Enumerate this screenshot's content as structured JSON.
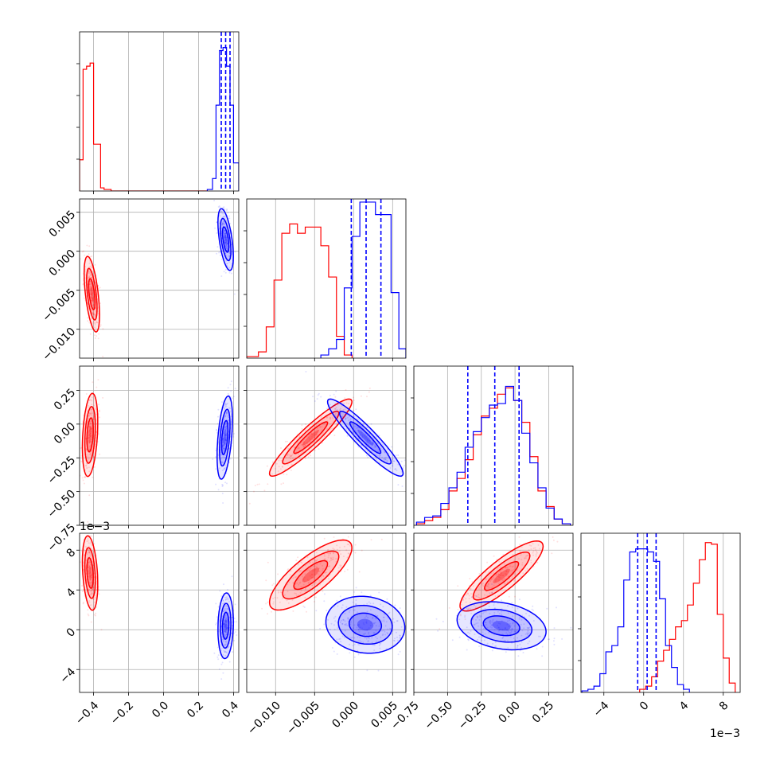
{
  "chart_data": {
    "type": "corner",
    "colors": {
      "series_a": "#ff0000",
      "series_b": "#0000ff"
    },
    "variables": [
      {
        "ticks": [
          -0.4,
          -0.2,
          0.0,
          0.2,
          0.4
        ],
        "tick_labels": [
          "−0.4",
          "−0.2",
          "0.0",
          "0.2",
          "0.4"
        ],
        "range": [
          -0.48,
          0.43
        ],
        "offset_label": ""
      },
      {
        "ticks": [
          -0.01,
          -0.005,
          0.0,
          0.005
        ],
        "tick_labels": [
          "−0.010",
          "−0.005",
          "0.000",
          "0.005"
        ],
        "range": [
          -0.0137,
          0.0067
        ],
        "offset_label": ""
      },
      {
        "ticks": [
          -0.75,
          -0.5,
          -0.25,
          0.0,
          0.25
        ],
        "tick_labels": [
          "−0.75",
          "−0.50",
          "−0.25",
          "0.00",
          "0.25"
        ],
        "range": [
          -0.75,
          0.43
        ],
        "offset_label": ""
      },
      {
        "ticks": [
          -4,
          0,
          4,
          8
        ],
        "tick_labels": [
          "−4",
          "0",
          "4",
          "8"
        ],
        "range": [
          -6.3,
          9.7
        ],
        "offset_label": "1e−3"
      }
    ],
    "quantiles_b": [
      [
        0.33,
        0.355,
        0.38
      ],
      [
        -0.0003,
        0.0016,
        0.0035
      ],
      [
        -0.35,
        -0.15,
        0.03
      ],
      [
        -0.6,
        0.35,
        1.25
      ]
    ],
    "histograms": [
      {
        "a": {
          "edges": [
            -0.48,
            -0.46,
            -0.44,
            -0.42,
            -0.4,
            -0.38,
            -0.36,
            -0.34,
            -0.32,
            -0.3,
            0.25
          ],
          "counts": [
            0.2,
            0.78,
            0.8,
            0.82,
            0.3,
            0.3,
            0.02,
            0.01,
            0.01,
            0
          ]
        },
        "b": {
          "edges": [
            0.25,
            0.28,
            0.3,
            0.32,
            0.34,
            0.36,
            0.38,
            0.4,
            0.43
          ],
          "counts": [
            0.01,
            0.08,
            0.55,
            0.9,
            0.92,
            0.8,
            0.55,
            0.18
          ]
        }
      },
      {
        "a": {
          "edges": [
            -0.0137,
            -0.0122,
            -0.0112,
            -0.0102,
            -0.0092,
            -0.0082,
            -0.0072,
            -0.0062,
            -0.0052,
            -0.0042,
            -0.0032,
            -0.0022,
            -0.0012,
            -0.0002
          ],
          "counts": [
            0.01,
            0.04,
            0.2,
            0.5,
            0.8,
            0.86,
            0.8,
            0.84,
            0.84,
            0.72,
            0.52,
            0.14,
            0.02
          ]
        },
        "b": {
          "edges": [
            -0.0042,
            -0.0032,
            -0.0022,
            -0.0012,
            -0.0002,
            0.0008,
            0.0018,
            0.0028,
            0.0038,
            0.0048,
            0.0058,
            0.0067
          ],
          "counts": [
            0.02,
            0.06,
            0.12,
            0.45,
            0.78,
            1.0,
            1.0,
            0.92,
            0.92,
            0.42,
            0.06
          ]
        }
      },
      {
        "a": {
          "edges": [
            -0.73,
            -0.67,
            -0.61,
            -0.55,
            -0.49,
            -0.43,
            -0.37,
            -0.31,
            -0.25,
            -0.19,
            -0.13,
            -0.07,
            -0.01,
            0.05,
            0.11,
            0.17,
            0.23,
            0.29,
            0.35,
            0.41
          ],
          "counts": [
            0.01,
            0.03,
            0.05,
            0.1,
            0.22,
            0.3,
            0.42,
            0.58,
            0.7,
            0.75,
            0.84,
            0.88,
            0.8,
            0.66,
            0.44,
            0.22,
            0.12,
            0.04,
            0.01
          ]
        },
        "b": {
          "edges": [
            -0.73,
            -0.67,
            -0.61,
            -0.55,
            -0.49,
            -0.43,
            -0.37,
            -0.31,
            -0.25,
            -0.19,
            -0.13,
            -0.07,
            -0.01,
            0.05,
            0.11,
            0.17,
            0.23,
            0.29,
            0.35,
            0.41
          ],
          "counts": [
            0.02,
            0.05,
            0.06,
            0.14,
            0.24,
            0.34,
            0.5,
            0.6,
            0.69,
            0.77,
            0.78,
            0.89,
            0.8,
            0.59,
            0.4,
            0.24,
            0.11,
            0.04,
            0.01
          ]
        }
      },
      {
        "a": {
          "edges": [
            -0.4,
            0.2,
            0.8,
            1.4,
            2.0,
            2.6,
            3.2,
            3.8,
            4.4,
            5.0,
            5.6,
            6.2,
            6.8,
            7.4,
            8.0,
            8.6,
            9.2
          ],
          "counts": [
            0.02,
            0.04,
            0.1,
            0.2,
            0.27,
            0.34,
            0.42,
            0.46,
            0.56,
            0.7,
            0.85,
            0.96,
            0.95,
            0.5,
            0.22,
            0.06
          ]
        },
        "b": {
          "edges": [
            -6.2,
            -5.6,
            -5.0,
            -4.4,
            -3.8,
            -3.2,
            -2.6,
            -2.0,
            -1.4,
            -0.8,
            -0.2,
            0.4,
            1.0,
            1.6,
            2.2,
            2.8,
            3.4,
            4.0,
            4.6
          ],
          "counts": [
            0.01,
            0.02,
            0.04,
            0.12,
            0.26,
            0.3,
            0.42,
            0.72,
            0.9,
            0.92,
            0.92,
            0.9,
            0.84,
            0.6,
            0.3,
            0.16,
            0.05,
            0.02
          ]
        }
      }
    ],
    "contour_pairs": [
      {
        "x": 0,
        "y": 1,
        "a": {
          "mean": [
            -0.41,
            -0.0055
          ],
          "sd": [
            0.02,
            0.0022
          ],
          "rho": -0.55
        },
        "b": {
          "mean": [
            0.355,
            0.0015
          ],
          "sd": [
            0.02,
            0.0018
          ],
          "rho": -0.55
        }
      },
      {
        "x": 0,
        "y": 2,
        "a": {
          "mean": [
            -0.42,
            -0.08
          ],
          "sd": [
            0.02,
            0.14
          ],
          "rho": 0.3
        },
        "b": {
          "mean": [
            0.35,
            -0.1
          ],
          "sd": [
            0.02,
            0.14
          ],
          "rho": 0.45
        }
      },
      {
        "x": 1,
        "y": 2,
        "a": {
          "mean": [
            -0.0055,
            -0.1
          ],
          "sd": [
            0.0024,
            0.13
          ],
          "rho": 0.93
        },
        "b": {
          "mean": [
            0.0015,
            -0.1
          ],
          "sd": [
            0.0022,
            0.13
          ],
          "rho": -0.93
        }
      },
      {
        "x": 0,
        "y": 3,
        "a": {
          "mean": [
            -0.42,
            5.7
          ],
          "sd": [
            0.02,
            1.7
          ],
          "rho": -0.3
        },
        "b": {
          "mean": [
            0.355,
            0.4
          ],
          "sd": [
            0.02,
            1.5
          ],
          "rho": 0.1
        }
      },
      {
        "x": 1,
        "y": 3,
        "a": {
          "mean": [
            -0.0055,
            5.5
          ],
          "sd": [
            0.0024,
            1.6
          ],
          "rho": 0.78
        },
        "b": {
          "mean": [
            0.0015,
            0.5
          ],
          "sd": [
            0.0023,
            1.3
          ],
          "rho": -0.1
        }
      },
      {
        "x": 2,
        "y": 3,
        "a": {
          "mean": [
            -0.1,
            5.4
          ],
          "sd": [
            0.14,
            1.6
          ],
          "rho": 0.85
        },
        "b": {
          "mean": [
            -0.1,
            0.4
          ],
          "sd": [
            0.15,
            1.1
          ],
          "rho": -0.25
        }
      }
    ]
  }
}
